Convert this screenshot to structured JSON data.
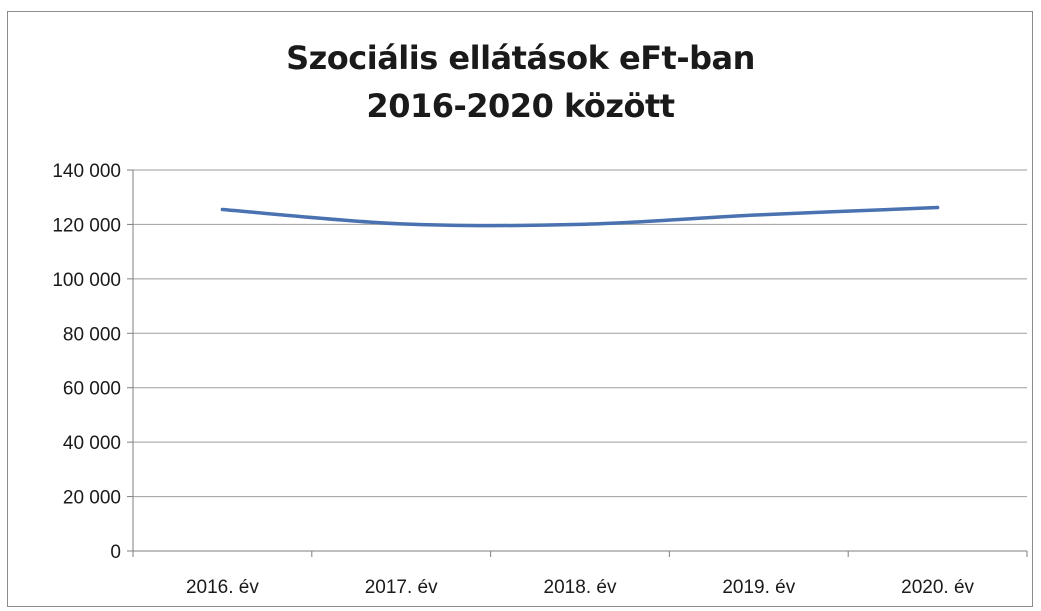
{
  "chart_data": {
    "type": "line",
    "title": [
      "Szociális ellátások eFt-ban",
      "2016-2020 között"
    ],
    "xlabel": "",
    "ylabel": "",
    "categories": [
      "2016. év",
      "2017. év",
      "2018. év",
      "2019. év",
      "2020. év"
    ],
    "series": [
      {
        "values": [
          125500,
          120200,
          120000,
          123500,
          126200
        ],
        "color": "#4a72b0"
      }
    ],
    "ylim": [
      0,
      140000
    ],
    "yticks": [
      0,
      20000,
      40000,
      60000,
      80000,
      100000,
      120000,
      140000
    ],
    "ytick_labels": [
      "0",
      "20 000",
      "40 000",
      "60 000",
      "80 000",
      "100 000",
      "120 000",
      "140 000"
    ],
    "grid": true,
    "legend": "none",
    "gridline_color": "#9e9e9e",
    "axis_color": "#7f7f7f"
  }
}
